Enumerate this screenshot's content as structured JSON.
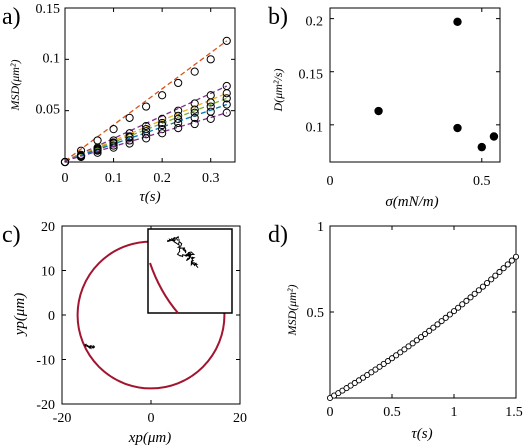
{
  "panel_letters": [
    "a)",
    "b)",
    "c)",
    "d)"
  ],
  "chart_data": [
    {
      "panel": "a)",
      "type": "scatter",
      "xlabel": "τ(s)",
      "ylabel": "MSD(μm²)",
      "xlim": [
        0,
        0.35
      ],
      "ylim": [
        0,
        0.15
      ],
      "xticks": [
        "0",
        "0.1",
        "0.2",
        "0.3"
      ],
      "yticks": [
        "0.05",
        "0.1",
        "0.15"
      ],
      "x": [
        0,
        0.033,
        0.067,
        0.1,
        0.133,
        0.167,
        0.2,
        0.233,
        0.267,
        0.3,
        0.333
      ],
      "series": [
        {
          "color": "#d95319",
          "values": [
            0,
            0.011,
            0.021,
            0.032,
            0.043,
            0.054,
            0.065,
            0.077,
            0.088,
            0.1,
            0.118
          ]
        },
        {
          "color": "#7e2f8e",
          "values": [
            0,
            0.007,
            0.014,
            0.021,
            0.028,
            0.035,
            0.042,
            0.05,
            0.057,
            0.065,
            0.074
          ]
        },
        {
          "color": "#edb120",
          "values": [
            0,
            0.006,
            0.013,
            0.019,
            0.025,
            0.032,
            0.038,
            0.045,
            0.051,
            0.058,
            0.067
          ]
        },
        {
          "color": "#77ac30",
          "values": [
            0,
            0.006,
            0.012,
            0.018,
            0.024,
            0.03,
            0.036,
            0.042,
            0.048,
            0.054,
            0.062
          ]
        },
        {
          "color": "#0072bd",
          "values": [
            0,
            0.005,
            0.011,
            0.016,
            0.021,
            0.027,
            0.032,
            0.038,
            0.043,
            0.049,
            0.056
          ]
        },
        {
          "color": "#7e2f8e",
          "values": [
            0,
            0.005,
            0.009,
            0.014,
            0.018,
            0.023,
            0.028,
            0.033,
            0.037,
            0.042,
            0.048
          ]
        }
      ]
    },
    {
      "panel": "b)",
      "type": "scatter",
      "xlabel": "σ(mN/m)",
      "ylabel": "D(μm²/s)",
      "xlim": [
        0,
        0.56
      ],
      "ylim": [
        0.065,
        0.21
      ],
      "xticks": [
        "0",
        "0.5"
      ],
      "yticks": [
        "0.1",
        "0.15",
        "0.2"
      ],
      "points": [
        {
          "x": 0.16,
          "y": 0.113
        },
        {
          "x": 0.42,
          "y": 0.197
        },
        {
          "x": 0.42,
          "y": 0.097
        },
        {
          "x": 0.5,
          "y": 0.079
        },
        {
          "x": 0.54,
          "y": 0.089
        }
      ]
    },
    {
      "panel": "c)",
      "type": "scatter",
      "xlabel": "xp(μm)",
      "ylabel": "yp(μm)",
      "xlim": [
        -20,
        20
      ],
      "ylim": [
        -20,
        20
      ],
      "xticks": [
        "-20",
        "0",
        "20"
      ],
      "yticks": [
        "20",
        "10",
        "0",
        "-10",
        "-20"
      ],
      "circle": {
        "cx": 0,
        "cy": 0,
        "r": 16.5,
        "color": "#a2142f"
      }
    },
    {
      "panel": "d)",
      "type": "line",
      "xlabel": "τ(s)",
      "ylabel": "MSD(μm²)",
      "xlim": [
        0,
        1.5
      ],
      "ylim": [
        0,
        1
      ],
      "xticks": [
        "0",
        "0.5",
        "1",
        "1.5"
      ],
      "yticks": [
        "0.5",
        "1"
      ],
      "fit": {
        "a": 0.42,
        "b": 0.085
      }
    }
  ]
}
